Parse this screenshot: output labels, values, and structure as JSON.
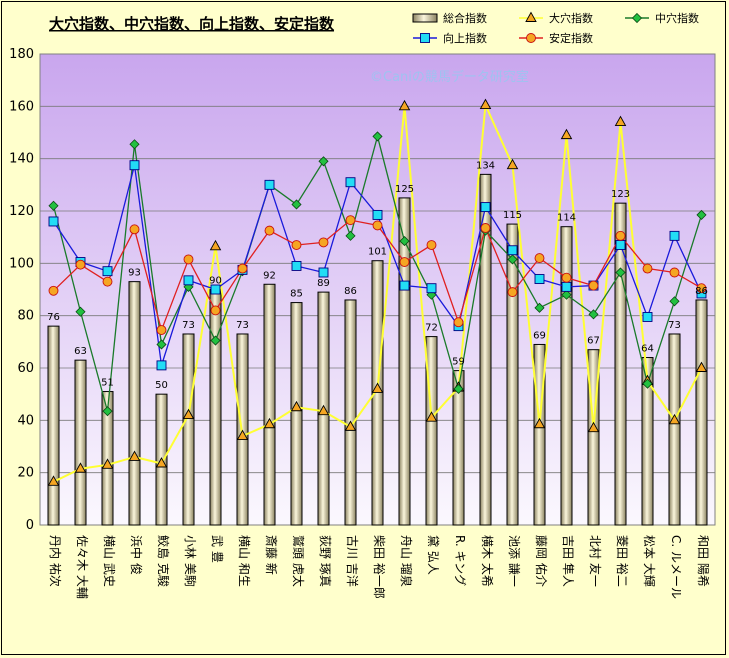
{
  "chart_data": {
    "type": "bar",
    "title": "大穴指数、中穴指数、向上指数、安定指数",
    "watermark": "©Caniの競馬データ研究室",
    "ylim": [
      0,
      180
    ],
    "yticks": [
      0,
      20,
      40,
      60,
      80,
      100,
      120,
      140,
      160,
      180
    ],
    "grid": true,
    "legend_position": "top-right",
    "categories": [
      "丹内 祐次",
      "佐々木 大輔",
      "横山 武史",
      "浜中 俊",
      "鮫島 克駿",
      "小林 美駒",
      "武 豊",
      "横山 和生",
      "斎藤 新",
      "鷲頭 虎太",
      "荻野 琢真",
      "古川 吉洋",
      "柴田 裕一郎",
      "舟山 瑠泉",
      "黛 弘人",
      "R. キング",
      "横木 太希",
      "池添 謙一",
      "藤岡 佑介",
      "吉田 隼人",
      "北村 友一",
      "菱田 裕二",
      "松本 大輝",
      "C. ルメール",
      "和田 陽希"
    ],
    "series": [
      {
        "name": "総合指数",
        "type": "bar",
        "color": "#c8bf8e",
        "values": [
          76,
          63,
          51,
          93,
          50,
          73,
          90,
          73,
          92,
          85,
          89,
          86,
          101,
          125,
          72,
          59,
          134,
          115,
          69,
          114,
          67,
          123,
          64,
          73,
          86
        ]
      },
      {
        "name": "大穴指数",
        "type": "line",
        "color": "#ffff33",
        "marker": "triangle",
        "values": [
          16.5,
          21.5,
          23,
          26,
          23.5,
          42,
          106.5,
          34,
          38.5,
          45,
          43.5,
          37.5,
          52,
          160,
          41,
          52.5,
          160.5,
          137.5,
          38.5,
          149,
          37,
          154,
          55,
          40,
          60
        ]
      },
      {
        "name": "中穴指数",
        "type": "line",
        "color": "#1a7a2a",
        "marker": "diamond",
        "values": [
          122,
          81.5,
          43.5,
          145.5,
          69,
          91,
          70.5,
          97,
          130,
          122.5,
          139,
          110.5,
          148.5,
          108.5,
          88,
          52,
          112.5,
          101.5,
          83,
          88,
          80.5,
          96.5,
          54,
          85.5,
          118.5
        ]
      },
      {
        "name": "向上指数",
        "type": "line",
        "color": "#1a1adb",
        "marker": "square",
        "values": [
          116,
          100.5,
          97,
          137.5,
          61,
          93.5,
          90,
          97.5,
          130,
          99,
          96.5,
          131,
          118.5,
          91.5,
          90.5,
          76,
          121.5,
          105,
          94,
          91,
          91.5,
          107,
          79.5,
          110.5,
          88.5
        ]
      },
      {
        "name": "安定指数",
        "type": "line",
        "color": "#e02020",
        "marker": "circle",
        "values": [
          89.5,
          99.5,
          93,
          113,
          74.5,
          101.5,
          82,
          98,
          112.5,
          107,
          108,
          116.5,
          114.5,
          100.5,
          107,
          77.5,
          113.5,
          89,
          102,
          94.5,
          91.5,
          110.5,
          98,
          96.5,
          90.5
        ]
      }
    ]
  }
}
